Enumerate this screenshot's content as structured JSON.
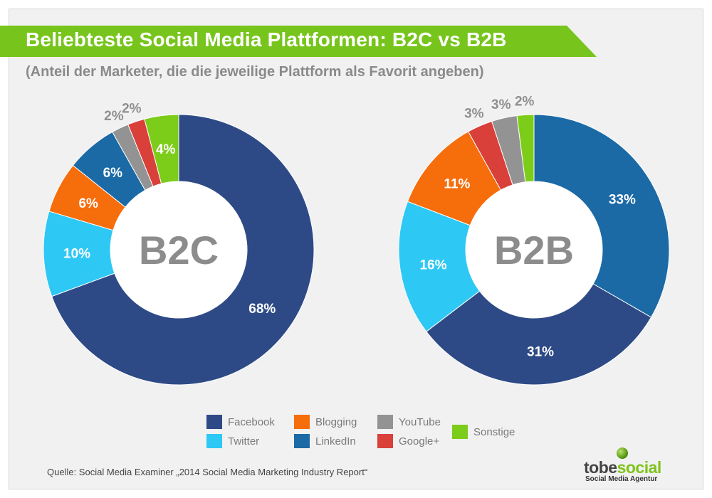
{
  "header": {
    "title": "Beliebteste Social Media Plattformen: B2C vs B2B",
    "subtitle": "(Anteil der Marketer, die die jeweilige Plattform als Favorit angeben)"
  },
  "colors": {
    "title_banner": "#77c51c",
    "Facebook": "#2e4a86",
    "Twitter": "#2ec8f5",
    "Blogging": "#f66d0c",
    "LinkedIn": "#1b6aa6",
    "YouTube": "#939393",
    "Google+": "#d9403a",
    "Sonstige": "#7ccc1a"
  },
  "chart_data": [
    {
      "type": "pie",
      "style": "donut",
      "center_label": "B2C",
      "categories": [
        "Facebook",
        "Twitter",
        "Blogging",
        "LinkedIn",
        "YouTube",
        "Google+",
        "Sonstige"
      ],
      "values": [
        68,
        10,
        6,
        6,
        2,
        2,
        4
      ],
      "value_labels": [
        "68%",
        "10%",
        "6%",
        "6%",
        "2%",
        "2%",
        "4%"
      ],
      "direction": "clockwise from top"
    },
    {
      "type": "pie",
      "style": "donut",
      "center_label": "B2B",
      "categories": [
        "LinkedIn",
        "Facebook",
        "Twitter",
        "Blogging",
        "Google+",
        "YouTube",
        "Sonstige"
      ],
      "values": [
        33,
        31,
        16,
        11,
        3,
        3,
        2
      ],
      "value_labels": [
        "33%",
        "31%",
        "16%",
        "11%",
        "3%",
        "3%",
        "2%"
      ],
      "direction": "clockwise from top"
    }
  ],
  "legend": [
    {
      "label": "Facebook",
      "color": "#2e4a86"
    },
    {
      "label": "Twitter",
      "color": "#2ec8f5"
    },
    {
      "label": "Blogging",
      "color": "#f66d0c"
    },
    {
      "label": "LinkedIn",
      "color": "#1b6aa6"
    },
    {
      "label": "YouTube",
      "color": "#939393"
    },
    {
      "label": "Google+",
      "color": "#d9403a"
    },
    {
      "label": "Sonstige",
      "color": "#7ccc1a"
    }
  ],
  "footer": {
    "source": "Quelle: Social Media Examiner „2014 Social Media Marketing Industry Report“",
    "logo_part1": "tobe",
    "logo_part2": "social",
    "logo_tagline": "Social Media Agentur"
  }
}
